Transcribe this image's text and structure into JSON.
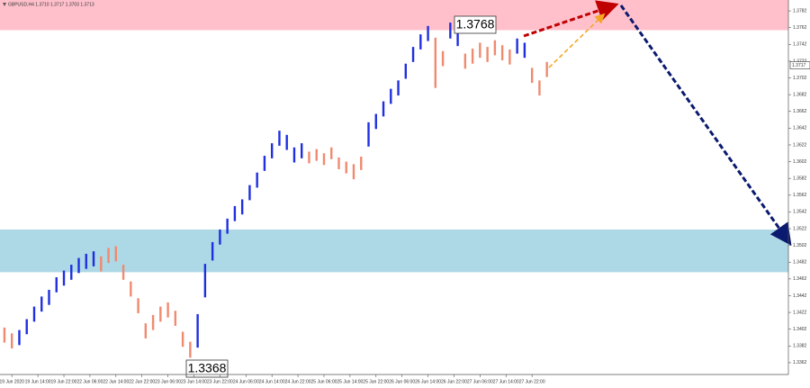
{
  "chart_data": {
    "type": "range-bar",
    "title": "GBPUSD,H4 1.3710 1.3717 1.3703 1.3713",
    "annotations": {
      "high": "1.3768",
      "low": "1.3368"
    },
    "current_price": 1.3717,
    "xlim": [
      -1.2,
      211
    ],
    "ylim": [
      1.3349,
      1.3795
    ],
    "xticks": [
      {
        "value": 2,
        "label": "19 Jun 2020"
      },
      {
        "value": 9,
        "label": "19 Jun 14:00"
      },
      {
        "value": 16,
        "label": "19 Jun 22:00"
      },
      {
        "value": 23,
        "label": "22 Jun 06:00"
      },
      {
        "value": 30,
        "label": "22 Jun 14:00"
      },
      {
        "value": 37,
        "label": "22 Jun 22:00"
      },
      {
        "value": 44,
        "label": "23 Jun 06:00"
      },
      {
        "value": 51,
        "label": "23 Jun 14:00"
      },
      {
        "value": 58,
        "label": "23 Jun 22:00"
      },
      {
        "value": 65,
        "label": "24 Jun 06:00"
      },
      {
        "value": 72,
        "label": "24 Jun 14:00"
      },
      {
        "value": 79,
        "label": "24 Jun 22:00"
      },
      {
        "value": 86,
        "label": "25 Jun 06:00"
      },
      {
        "value": 93,
        "label": "25 Jun 14:00"
      },
      {
        "value": 100,
        "label": "25 Jun 22:00"
      },
      {
        "value": 107,
        "label": "26 Jun 06:00"
      },
      {
        "value": 114,
        "label": "26 Jun 14:00"
      },
      {
        "value": 121,
        "label": "26 Jun 22:00"
      },
      {
        "value": 128,
        "label": "27 Jun 06:00"
      },
      {
        "value": 135,
        "label": "27 Jun 14:00"
      },
      {
        "value": 142,
        "label": "27 Jun 22:00"
      }
    ],
    "yticks": [
      1.3782,
      1.3762,
      1.3742,
      1.3722,
      1.3702,
      1.3682,
      1.3662,
      1.3642,
      1.3622,
      1.3602,
      1.3582,
      1.3562,
      1.3542,
      1.3522,
      1.3502,
      1.3482,
      1.3462,
      1.3442,
      1.3422,
      1.3402,
      1.3382,
      1.3362
    ],
    "zones": [
      {
        "color": "#ffc0cb",
        "range": [
          1.3759,
          1.3795
        ]
      },
      {
        "color": "#add8e6",
        "range": [
          1.347,
          1.3521
        ]
      }
    ],
    "series": [
      {
        "color": "#f08a6f",
        "x": [
          0,
          2
        ],
        "low": [
          1.3386,
          1.3379
        ],
        "high": [
          1.3404,
          1.3397
        ]
      },
      {
        "color": "#1f2fe0",
        "x": [
          4,
          6,
          8,
          10,
          12,
          14,
          16,
          18,
          20,
          22,
          24
        ],
        "low": [
          1.3383,
          1.3396,
          1.3411,
          1.3423,
          1.3431,
          1.3446,
          1.3454,
          1.3461,
          1.3469,
          1.3474,
          1.3477
        ],
        "high": [
          1.3401,
          1.3414,
          1.3429,
          1.3441,
          1.3449,
          1.3464,
          1.3472,
          1.3479,
          1.3487,
          1.3492,
          1.3495
        ]
      },
      {
        "color": "#f08a6f",
        "x": [
          26,
          28,
          30,
          32,
          34,
          36,
          38,
          40,
          42,
          44,
          46,
          48,
          50
        ],
        "low": [
          1.3471,
          1.3481,
          1.3483,
          1.3461,
          1.3441,
          1.3421,
          1.3391,
          1.3401,
          1.3411,
          1.3416,
          1.3406,
          1.3381,
          1.3368
        ],
        "high": [
          1.3489,
          1.3499,
          1.3501,
          1.3479,
          1.3459,
          1.3439,
          1.3409,
          1.3419,
          1.3429,
          1.3434,
          1.3424,
          1.3399,
          1.3387
        ]
      },
      {
        "color": "#1f2fe0",
        "x": [
          52,
          54,
          56,
          58,
          60,
          62,
          64,
          66,
          68,
          70,
          72,
          74,
          76,
          78,
          80
        ],
        "low": [
          1.338,
          1.344,
          1.3484,
          1.3503,
          1.3516,
          1.3531,
          1.3539,
          1.3556,
          1.3571,
          1.3591,
          1.3606,
          1.3621,
          1.3616,
          1.3601,
          1.3606
        ],
        "high": [
          1.342,
          1.348,
          1.3506,
          1.3521,
          1.3534,
          1.3549,
          1.3557,
          1.3574,
          1.3589,
          1.3609,
          1.3624,
          1.3639,
          1.3634,
          1.3619,
          1.3624
        ]
      },
      {
        "color": "#f08a6f",
        "x": [
          82,
          84,
          86,
          88,
          90,
          92,
          94,
          96
        ],
        "low": [
          1.36,
          1.3603,
          1.3598,
          1.3605,
          1.3593,
          1.3588,
          1.3581,
          1.3592
        ],
        "high": [
          1.3614,
          1.3617,
          1.3612,
          1.3619,
          1.3607,
          1.3602,
          1.3599,
          1.3608
        ]
      },
      {
        "color": "#1f2fe0",
        "x": [
          98,
          100,
          102,
          104,
          106,
          108,
          110,
          112,
          114
        ],
        "low": [
          1.362,
          1.3641,
          1.3656,
          1.3671,
          1.3681,
          1.3701,
          1.3721,
          1.3736,
          1.3746
        ],
        "high": [
          1.3649,
          1.3659,
          1.3674,
          1.3689,
          1.3699,
          1.3719,
          1.3739,
          1.3754,
          1.3764
        ]
      },
      {
        "color": "#f08a6f",
        "x": [
          116,
          118
        ],
        "low": [
          1.369,
          1.3716
        ],
        "high": [
          1.375,
          1.3734
        ]
      },
      {
        "color": "#1f2fe0",
        "x": [
          120,
          122
        ],
        "low": [
          1.3749,
          1.374
        ],
        "high": [
          1.3768,
          1.3764
        ]
      },
      {
        "color": "#f08a6f",
        "x": [
          124,
          126,
          128,
          130,
          132,
          134,
          136
        ],
        "low": [
          1.3713,
          1.3719,
          1.3726,
          1.3721,
          1.3729,
          1.3723,
          1.3718
        ],
        "high": [
          1.3731,
          1.3737,
          1.3744,
          1.3739,
          1.3747,
          1.3741,
          1.3736
        ]
      },
      {
        "color": "#1f2fe0",
        "x": [
          138,
          140
        ],
        "low": [
          1.3731,
          1.3726
        ],
        "high": [
          1.3749,
          1.3744
        ]
      },
      {
        "color": "#f08a6f",
        "x": [
          142,
          144,
          146
        ],
        "low": [
          1.3696,
          1.3681,
          1.3703
        ],
        "high": [
          1.3714,
          1.3699,
          1.3721
        ]
      }
    ]
  }
}
